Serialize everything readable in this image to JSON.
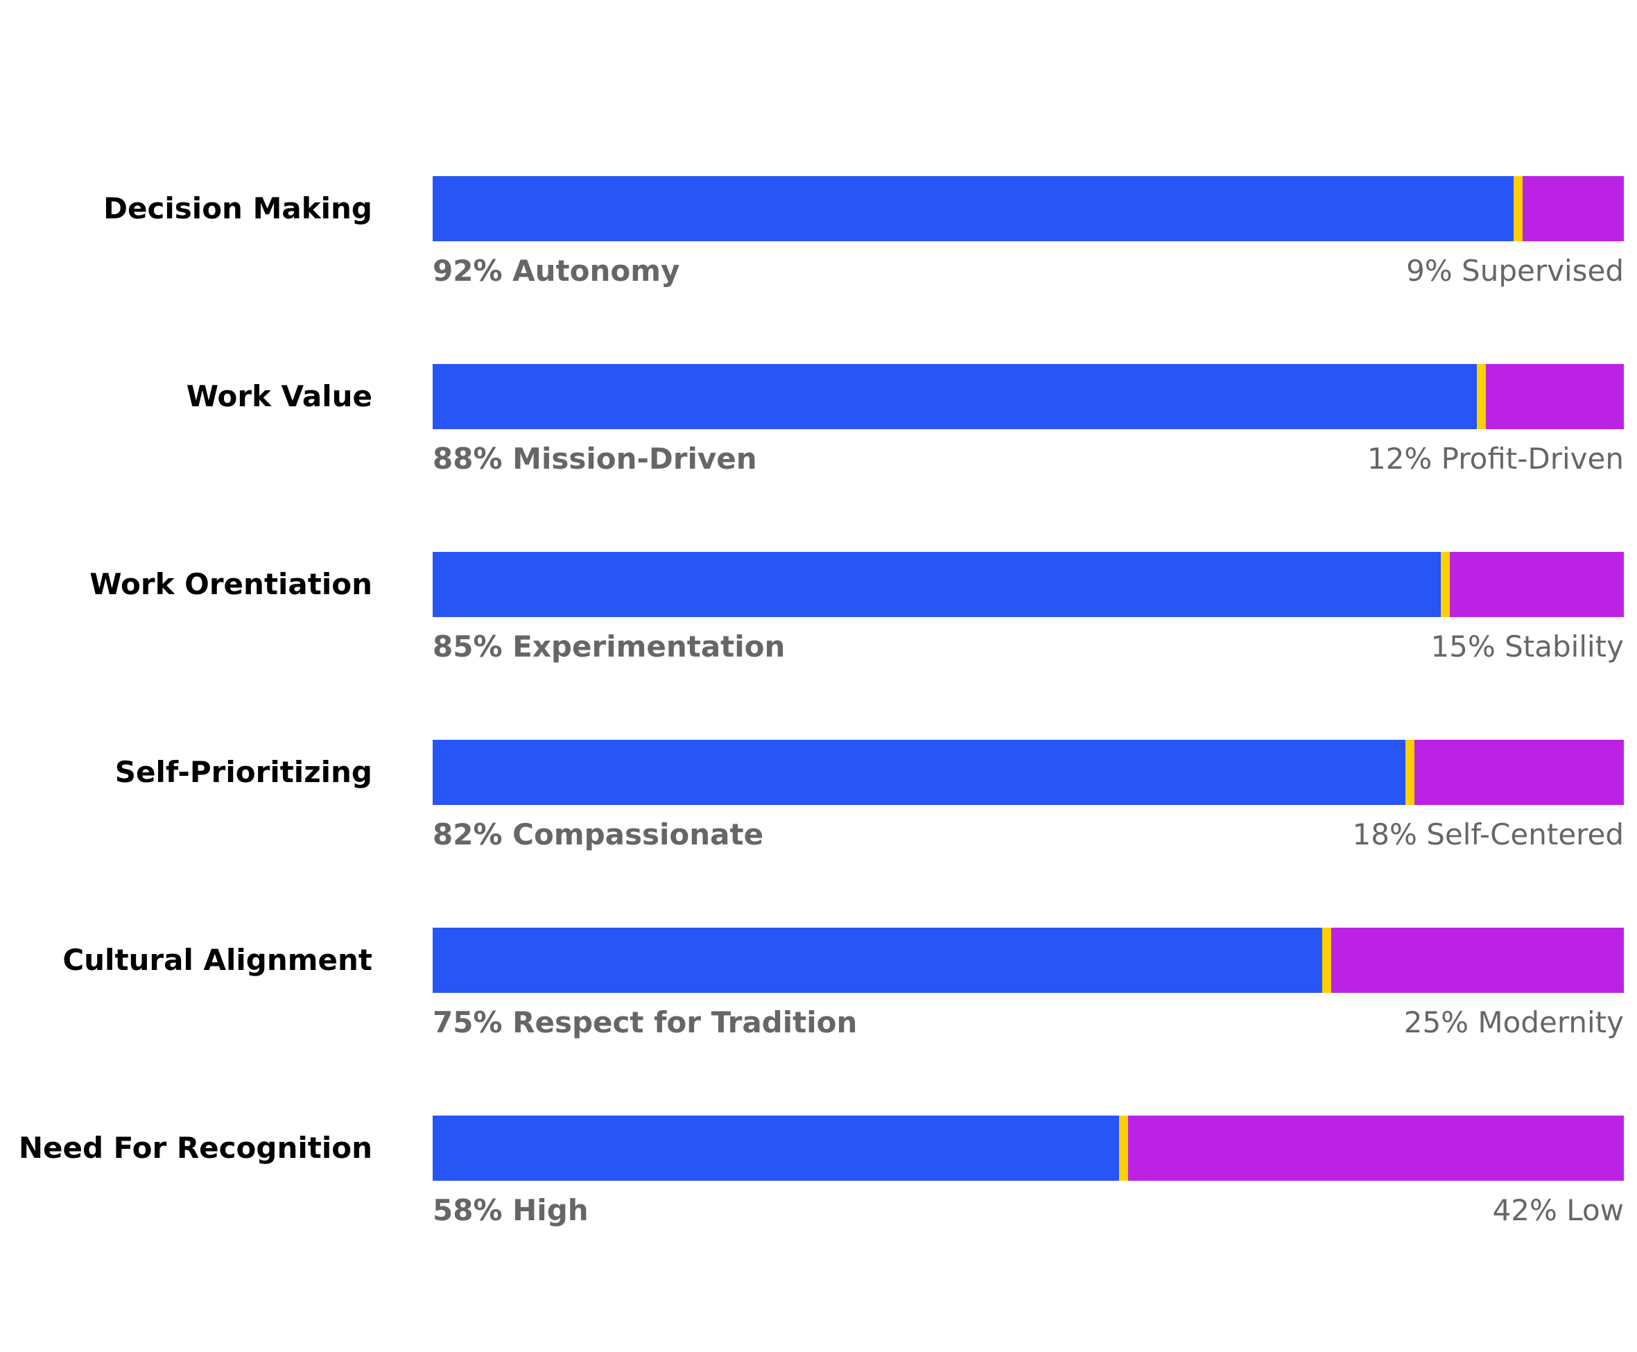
{
  "colors": {
    "left_segment": "#2855F5",
    "right_segment": "#BC22E4",
    "marker": "#FFD000",
    "category_text": "#000000",
    "value_text": "#666666",
    "background": "#FFFFFF"
  },
  "chart_data": {
    "type": "bar",
    "orientation": "horizontal",
    "stacked": true,
    "title": "",
    "xlabel": "",
    "ylabel": "",
    "xlim": [
      0,
      100
    ],
    "grid": false,
    "categories": [
      "Decision Making",
      "Work Value",
      "Work Orentiation",
      "Self-Prioritizing",
      "Cultural Alignment",
      "Need For Recognition"
    ],
    "series": [
      {
        "name": "Left",
        "values": [
          92,
          88,
          85,
          82,
          75,
          58
        ]
      },
      {
        "name": "Right",
        "values": [
          9,
          12,
          15,
          18,
          25,
          42
        ]
      }
    ],
    "rows": [
      {
        "category": "Decision Making",
        "left_value": 92,
        "right_value": 9,
        "left_label": "92% Autonomy",
        "right_label": "9% Supervised"
      },
      {
        "category": "Work Value",
        "left_value": 88,
        "right_value": 12,
        "left_label": "88% Mission-Driven",
        "right_label": "12% Profit-Driven"
      },
      {
        "category": "Work Orentiation",
        "left_value": 85,
        "right_value": 15,
        "left_label": "85% Experimentation",
        "right_label": "15% Stability"
      },
      {
        "category": "Self-Prioritizing",
        "left_value": 82,
        "right_value": 18,
        "left_label": "82% Compassionate",
        "right_label": "18% Self-Centered"
      },
      {
        "category": "Cultural Alignment",
        "left_value": 75,
        "right_value": 25,
        "left_label": "75% Respect for Tradition",
        "right_label": "25% Modernity"
      },
      {
        "category": "Need For Recognition",
        "left_value": 58,
        "right_value": 42,
        "left_label": "58% High",
        "right_label": "42% Low"
      }
    ]
  }
}
